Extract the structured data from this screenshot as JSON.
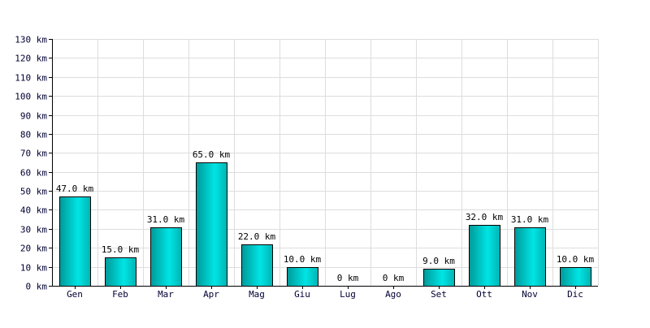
{
  "chart_data": {
    "type": "bar",
    "title": "",
    "xlabel": "",
    "ylabel": "",
    "unit": "km",
    "categories": [
      "Gen",
      "Feb",
      "Mar",
      "Apr",
      "Mag",
      "Giu",
      "Lug",
      "Ago",
      "Set",
      "Ott",
      "Nov",
      "Dic"
    ],
    "values": [
      47.0,
      15.0,
      31.0,
      65.0,
      22.0,
      10.0,
      0,
      0,
      9.0,
      32.0,
      31.0,
      10.0
    ],
    "data_labels": [
      "47.0 km",
      "15.0 km",
      "31.0 km",
      "65.0 km",
      "22.0 km",
      "10.0 km",
      "0 km",
      "0 km",
      "9.0 km",
      "32.0 km",
      "31.0 km",
      "10.0 km"
    ],
    "y_ticks": [
      "0 km",
      "10 km",
      "20 km",
      "30 km",
      "40 km",
      "50 km",
      "60 km",
      "70 km",
      "80 km",
      "90 km",
      "100 km",
      "110 km",
      "120 km",
      "130 km"
    ],
    "ylim": [
      0,
      130
    ],
    "grid": true,
    "legend": "none",
    "colors": {
      "bar_gradient_start": "#009999",
      "bar_gradient_mid": "#00e5e5",
      "bar_gradient_end": "#00b3b3",
      "grid": "#dddddd",
      "axis": "#000000",
      "tick_text": "#000033"
    }
  }
}
